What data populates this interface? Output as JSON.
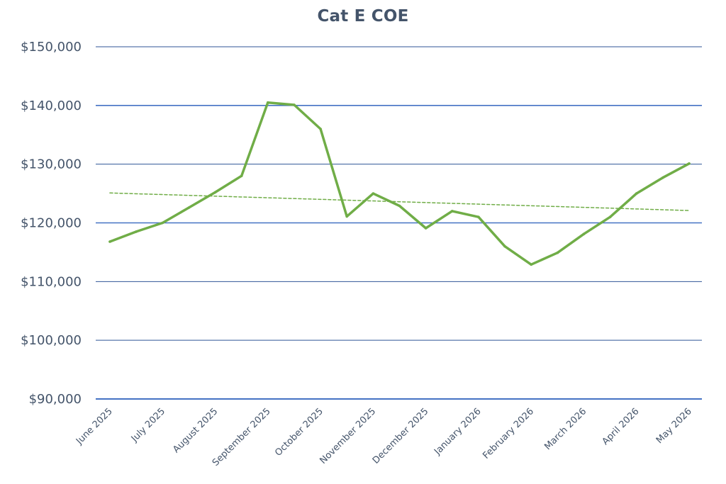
{
  "chart_data": {
    "type": "line",
    "title": "Cat E COE",
    "xlabel": "",
    "ylabel": "",
    "ylim": [
      90000,
      150000
    ],
    "y_ticks": [
      90000,
      100000,
      110000,
      120000,
      130000,
      140000,
      150000
    ],
    "y_tick_labels": [
      "$90,000",
      "$100,000",
      "$110,000",
      "$120,000",
      "$130,000",
      "$140,000",
      "$150,000"
    ],
    "category_labels": [
      "June 2025",
      "July 2025",
      "August 2025",
      "September 2025",
      "October 2025",
      "November 2025",
      "December 2025",
      "January 2026",
      "February 2026",
      "March 2026",
      "April 2026",
      "May 2026"
    ],
    "grid": true,
    "legend": "none",
    "series": [
      {
        "style": "solid",
        "color": "#70ad47",
        "x": [
          0,
          0.5,
          1,
          1.5,
          2,
          2.5,
          3,
          3.5,
          4,
          4.5,
          5,
          5.5,
          6,
          6.5,
          7,
          7.5,
          8,
          8.5,
          9,
          9.5,
          10,
          10.5,
          11
        ],
        "values": [
          116800,
          118500,
          120000,
          122600,
          125200,
          128000,
          140500,
          140100,
          136000,
          121100,
          125000,
          122900,
          119100,
          122000,
          121000,
          116000,
          112900,
          114900,
          118100,
          121000,
          125000,
          127700,
          130100
        ]
      },
      {
        "style": "dashed",
        "trendline": true,
        "color": "#70ad47",
        "x": [
          0,
          11
        ],
        "values": [
          125100,
          122100
        ]
      }
    ],
    "colors": {
      "gridline": "#2f5597",
      "baseline": "#4472c4",
      "text": "#44546a"
    }
  }
}
